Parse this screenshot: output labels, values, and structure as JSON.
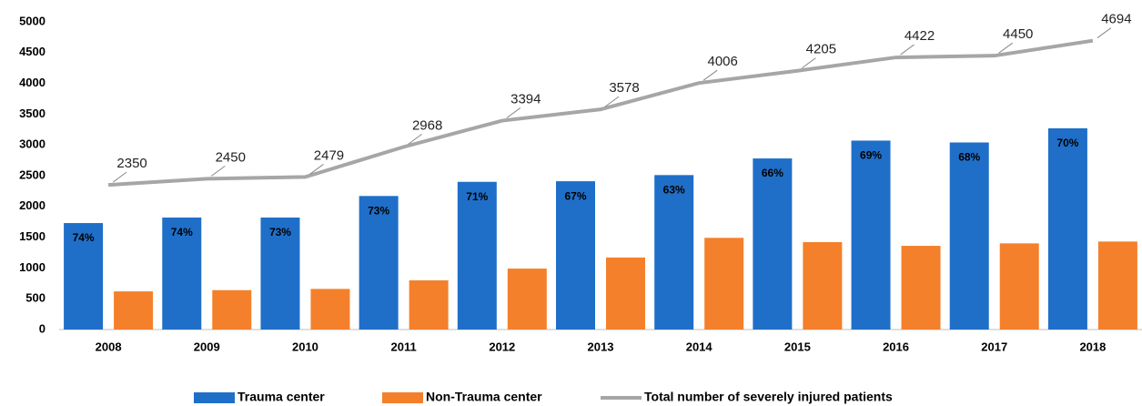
{
  "chart_data": {
    "type": "bar",
    "categories": [
      "2008",
      "2009",
      "2010",
      "2011",
      "2012",
      "2013",
      "2014",
      "2015",
      "2016",
      "2017",
      "2018"
    ],
    "series": [
      {
        "name": "Trauma center",
        "color": "#1f6fc9",
        "values": [
          1730,
          1820,
          1820,
          2170,
          2400,
          2410,
          2510,
          2780,
          3070,
          3040,
          3270
        ],
        "annotations": [
          "74%",
          "74%",
          "73%",
          "73%",
          "71%",
          "67%",
          "63%",
          "66%",
          "69%",
          "68%",
          "70%"
        ]
      },
      {
        "name": "Non-Trauma center",
        "color": "#f4802b",
        "values": [
          620,
          640,
          660,
          800,
          990,
          1170,
          1490,
          1420,
          1360,
          1400,
          1430
        ]
      },
      {
        "name": "Total number of severely injured patients",
        "type": "line",
        "color": "#a6a6a6",
        "values": [
          2350,
          2450,
          2479,
          2968,
          3394,
          3578,
          4006,
          4205,
          4422,
          4450,
          4694
        ]
      }
    ],
    "ylim": [
      0,
      5000
    ],
    "yticks": [
      0,
      500,
      1000,
      1500,
      2000,
      2500,
      3000,
      3500,
      4000,
      4500,
      5000
    ],
    "grid": false,
    "legend": "bottom"
  }
}
